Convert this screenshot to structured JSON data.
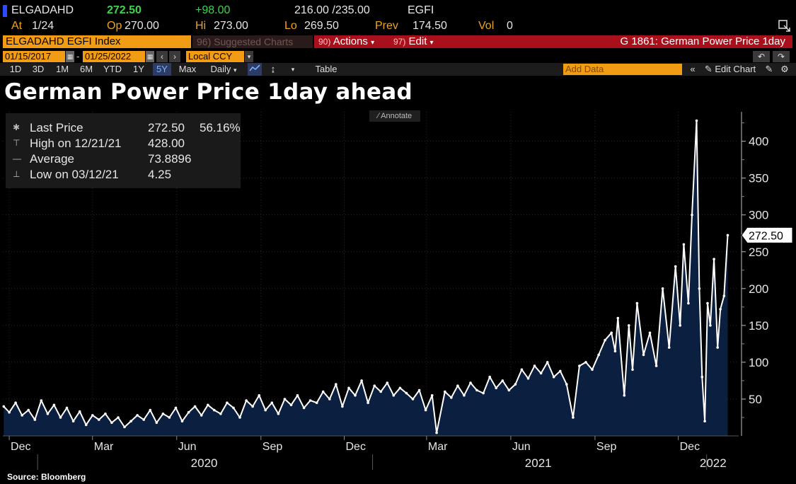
{
  "quote": {
    "ticker": "ELGADAHD",
    "last": "272.50",
    "change": "+98.00",
    "bidask": "216.00 /235.00",
    "source_code": "EGFI",
    "at_label": "At",
    "at_value": "1/24",
    "op_label": "Op",
    "op_value": "270.00",
    "hi_label": "Hi",
    "hi_value": "273.00",
    "lo_label": "Lo",
    "lo_value": "269.50",
    "prev_label": "Prev",
    "prev_value": "174.50",
    "vol_label": "Vol",
    "vol_value": "0"
  },
  "toolbar": {
    "security": "ELGADAHD EGFI Index",
    "suggested": "96) Suggested Charts",
    "actions_num": "90)",
    "actions_label": "Actions",
    "edit_num": "97)",
    "edit_label": "Edit",
    "chart_id": "G 1861: German Power Price 1day"
  },
  "dates": {
    "start": "01/15/2017",
    "end": "01/25/2022",
    "currency": "Local CCY"
  },
  "periods": [
    "1D",
    "3D",
    "1M",
    "6M",
    "YTD",
    "1Y",
    "5Y",
    "Max"
  ],
  "active_period": "5Y",
  "frequency": "Daily",
  "table_label": "Table",
  "add_data_placeholder": "Add Data",
  "edit_chart_label": "Edit Chart",
  "annotate_label": "Annotate",
  "title": "German Power Price 1day ahead",
  "legend": {
    "last_label": "Last Price",
    "last_value": "272.50",
    "last_pct": "56.16%",
    "high_label": "High on 12/21/21",
    "high_value": "428.00",
    "avg_label": "Average",
    "avg_value": "73.8896",
    "low_label": "Low on 03/12/21",
    "low_value": "4.25"
  },
  "source": "Source: Bloomberg",
  "colors": {
    "area": "#0b2040",
    "line": "#ffffff",
    "accent": "#f29b14",
    "menu_red": "#a8101c"
  },
  "chart_data": {
    "type": "area",
    "title": "German Power Price 1day ahead",
    "ylim": [
      0,
      440
    ],
    "yticks": [
      50,
      100,
      150,
      200,
      250,
      300,
      350,
      400
    ],
    "last_label": "272.50",
    "xlim": [
      "2019-11-24",
      "2022-02-05"
    ],
    "x_ticks": [
      {
        "date": "2019-12-01",
        "label": "Dec"
      },
      {
        "date": "2020-03-01",
        "label": "Mar"
      },
      {
        "date": "2020-06-01",
        "label": "Jun"
      },
      {
        "date": "2020-09-01",
        "label": "Sep"
      },
      {
        "date": "2020-12-01",
        "label": "Dec"
      },
      {
        "date": "2021-03-01",
        "label": "Mar"
      },
      {
        "date": "2021-06-01",
        "label": "Jun"
      },
      {
        "date": "2021-09-01",
        "label": "Sep"
      },
      {
        "date": "2021-12-01",
        "label": "Dec"
      }
    ],
    "year_labels": [
      {
        "date": "2020-07-01",
        "label": "2020"
      },
      {
        "date": "2021-07-01",
        "label": "2021"
      },
      {
        "date": "2022-01-08",
        "label": "2022"
      }
    ],
    "series": [
      {
        "x": [
          "2019-11-25",
          "2019-12-01",
          "2019-12-08",
          "2019-12-15",
          "2019-12-22",
          "2019-12-29",
          "2020-01-05",
          "2020-01-12",
          "2020-01-19",
          "2020-01-26",
          "2020-02-02",
          "2020-02-09",
          "2020-02-16",
          "2020-02-23",
          "2020-03-01",
          "2020-03-08",
          "2020-03-15",
          "2020-03-22",
          "2020-03-29",
          "2020-04-05",
          "2020-04-12",
          "2020-04-19",
          "2020-04-26",
          "2020-05-03",
          "2020-05-10",
          "2020-05-17",
          "2020-05-24",
          "2020-05-31",
          "2020-06-07",
          "2020-06-14",
          "2020-06-21",
          "2020-06-28",
          "2020-07-05",
          "2020-07-12",
          "2020-07-19",
          "2020-07-26",
          "2020-08-02",
          "2020-08-09",
          "2020-08-16",
          "2020-08-23",
          "2020-08-30",
          "2020-09-06",
          "2020-09-13",
          "2020-09-20",
          "2020-09-27",
          "2020-10-04",
          "2020-10-11",
          "2020-10-18",
          "2020-10-25",
          "2020-11-01",
          "2020-11-08",
          "2020-11-15",
          "2020-11-22",
          "2020-11-29",
          "2020-12-06",
          "2020-12-13",
          "2020-12-20",
          "2020-12-27",
          "2021-01-03",
          "2021-01-10",
          "2021-01-17",
          "2021-01-24",
          "2021-01-31",
          "2021-02-07",
          "2021-02-14",
          "2021-02-21",
          "2021-02-28",
          "2021-03-07",
          "2021-03-12",
          "2021-03-21",
          "2021-03-28",
          "2021-04-04",
          "2021-04-11",
          "2021-04-18",
          "2021-04-25",
          "2021-05-02",
          "2021-05-09",
          "2021-05-16",
          "2021-05-23",
          "2021-05-30",
          "2021-06-06",
          "2021-06-13",
          "2021-06-20",
          "2021-06-27",
          "2021-07-04",
          "2021-07-11",
          "2021-07-18",
          "2021-07-25",
          "2021-08-01",
          "2021-08-08",
          "2021-08-15",
          "2021-08-22",
          "2021-08-29",
          "2021-09-05",
          "2021-09-12",
          "2021-09-19",
          "2021-09-23",
          "2021-09-26",
          "2021-10-03",
          "2021-10-08",
          "2021-10-12",
          "2021-10-17",
          "2021-10-24",
          "2021-10-31",
          "2021-11-07",
          "2021-11-14",
          "2021-11-21",
          "2021-11-28",
          "2021-12-03",
          "2021-12-07",
          "2021-12-12",
          "2021-12-16",
          "2021-12-21",
          "2021-12-24",
          "2021-12-27",
          "2021-12-30",
          "2022-01-02",
          "2022-01-05",
          "2022-01-09",
          "2022-01-13",
          "2022-01-16",
          "2022-01-20",
          "2022-01-24"
        ],
        "y": [
          40,
          32,
          45,
          28,
          35,
          22,
          48,
          30,
          42,
          25,
          38,
          20,
          33,
          15,
          28,
          22,
          30,
          18,
          25,
          12,
          20,
          28,
          22,
          35,
          18,
          30,
          25,
          38,
          20,
          32,
          40,
          28,
          42,
          35,
          30,
          45,
          38,
          25,
          48,
          40,
          55,
          35,
          45,
          30,
          50,
          42,
          55,
          38,
          48,
          45,
          60,
          50,
          70,
          40,
          65,
          55,
          75,
          45,
          68,
          60,
          72,
          55,
          65,
          58,
          50,
          62,
          35,
          55,
          4.25,
          60,
          52,
          68,
          55,
          72,
          62,
          58,
          80,
          65,
          75,
          62,
          70,
          90,
          78,
          95,
          85,
          100,
          80,
          88,
          70,
          25,
          95,
          100,
          90,
          110,
          130,
          140,
          115,
          160,
          55,
          150,
          90,
          180,
          110,
          140,
          95,
          200,
          120,
          230,
          150,
          260,
          180,
          300,
          428,
          200,
          80,
          20,
          180,
          150,
          240,
          120,
          172,
          190,
          272.5
        ]
      }
    ]
  }
}
